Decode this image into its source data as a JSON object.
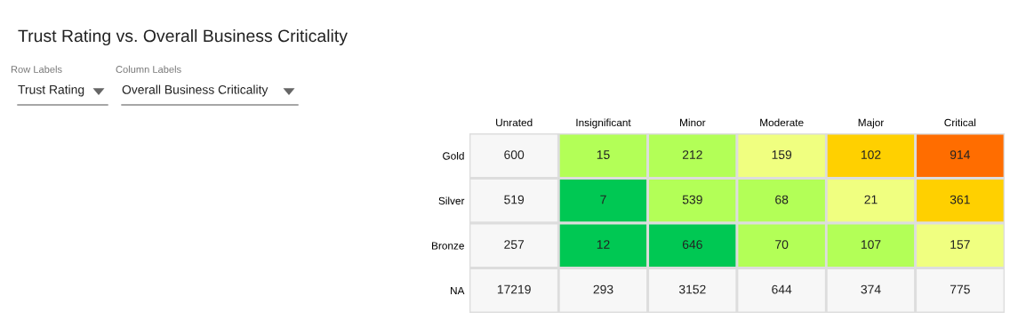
{
  "chart_data": {
    "type": "heatmap",
    "title": "Trust Rating vs. Overall Business Criticality",
    "annotations": [
      "Row Labels",
      "Trust Rating",
      "Column Labels",
      "Overall Business Criticality"
    ],
    "data_labels": true,
    "categories": [
      "Unrated",
      "Insignificant",
      "Minor",
      "Moderate",
      "Major",
      "Critical"
    ],
    "y_categories": [
      "Gold",
      "Silver",
      "Bronze",
      "NA"
    ],
    "cells": [
      [
        600,
        15,
        212,
        159,
        102,
        914
      ],
      [
        519,
        7,
        539,
        68,
        21,
        361
      ],
      [
        257,
        12,
        646,
        70,
        107,
        157
      ],
      [
        17219,
        293,
        3152,
        644,
        374,
        775
      ]
    ],
    "colors": [
      [
        "#f7f7f7",
        "#b3ff57",
        "#b3ff57",
        "#f0ff80",
        "#ffd000",
        "#ff6d00"
      ],
      [
        "#f7f7f7",
        "#00c853",
        "#b3ff57",
        "#b3ff57",
        "#f0ff80",
        "#ffd000"
      ],
      [
        "#f7f7f7",
        "#00c853",
        "#00c853",
        "#b3ff57",
        "#b3ff57",
        "#f0ff80"
      ],
      [
        "#f7f7f7",
        "#f7f7f7",
        "#f7f7f7",
        "#f7f7f7",
        "#f7f7f7",
        "#f7f7f7"
      ]
    ]
  }
}
